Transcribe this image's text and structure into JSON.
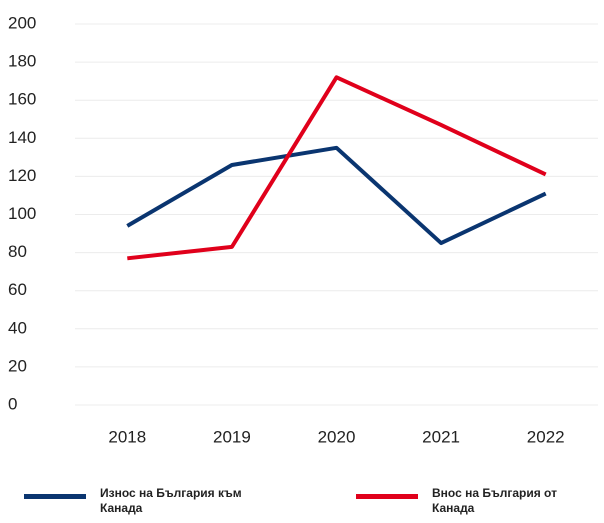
{
  "chart_data": {
    "type": "line",
    "categories": [
      "2018",
      "2019",
      "2020",
      "2021",
      "2022"
    ],
    "series": [
      {
        "name": "Износ на България към Канада",
        "color": "#0a3570",
        "values": [
          94,
          126,
          135,
          85,
          111
        ]
      },
      {
        "name": "Внос на България от Канада",
        "color": "#e0001b",
        "values": [
          77,
          83,
          172,
          147,
          121
        ]
      }
    ],
    "ylim": [
      0,
      200
    ],
    "yticks": [
      0,
      20,
      40,
      60,
      80,
      100,
      120,
      140,
      160,
      180,
      200
    ],
    "grid": true,
    "legend": "bottom"
  }
}
